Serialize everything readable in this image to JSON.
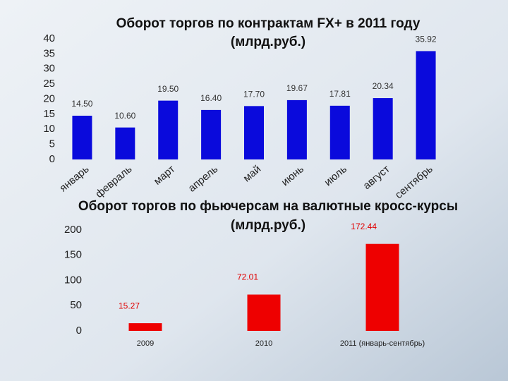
{
  "chart_data": [
    {
      "type": "bar",
      "title": "Оборот торгов по контрактам FX+ в 2011 году",
      "subtitle": "(млрд.руб.)",
      "categories": [
        "январь",
        "февраль",
        "март",
        "апрель",
        "май",
        "июнь",
        "июль",
        "август",
        "сентябрь"
      ],
      "values": [
        14.5,
        10.6,
        19.5,
        16.4,
        17.7,
        19.67,
        17.81,
        20.34,
        35.92
      ],
      "value_labels": [
        "14.50",
        "10.60",
        "19.50",
        "16.40",
        "17.70",
        "19.67",
        "17.81",
        "20.34",
        "35.92"
      ],
      "color": "#0a0adc",
      "ylim": [
        0,
        40
      ],
      "yticks": [
        0,
        5,
        10,
        15,
        20,
        25,
        30,
        35,
        40
      ]
    },
    {
      "type": "bar",
      "title": "Оборот торгов по фьючерсам  на валютные кросс-курсы",
      "subtitle": "(млрд.руб.)",
      "categories": [
        "2009",
        "2010",
        "2011 (январь-сентябрь)"
      ],
      "values": [
        15.27,
        72.01,
        172.44
      ],
      "color": "#ee0000",
      "ylim": [
        0,
        200
      ],
      "yticks": [
        0,
        50,
        100,
        150,
        200
      ]
    }
  ]
}
